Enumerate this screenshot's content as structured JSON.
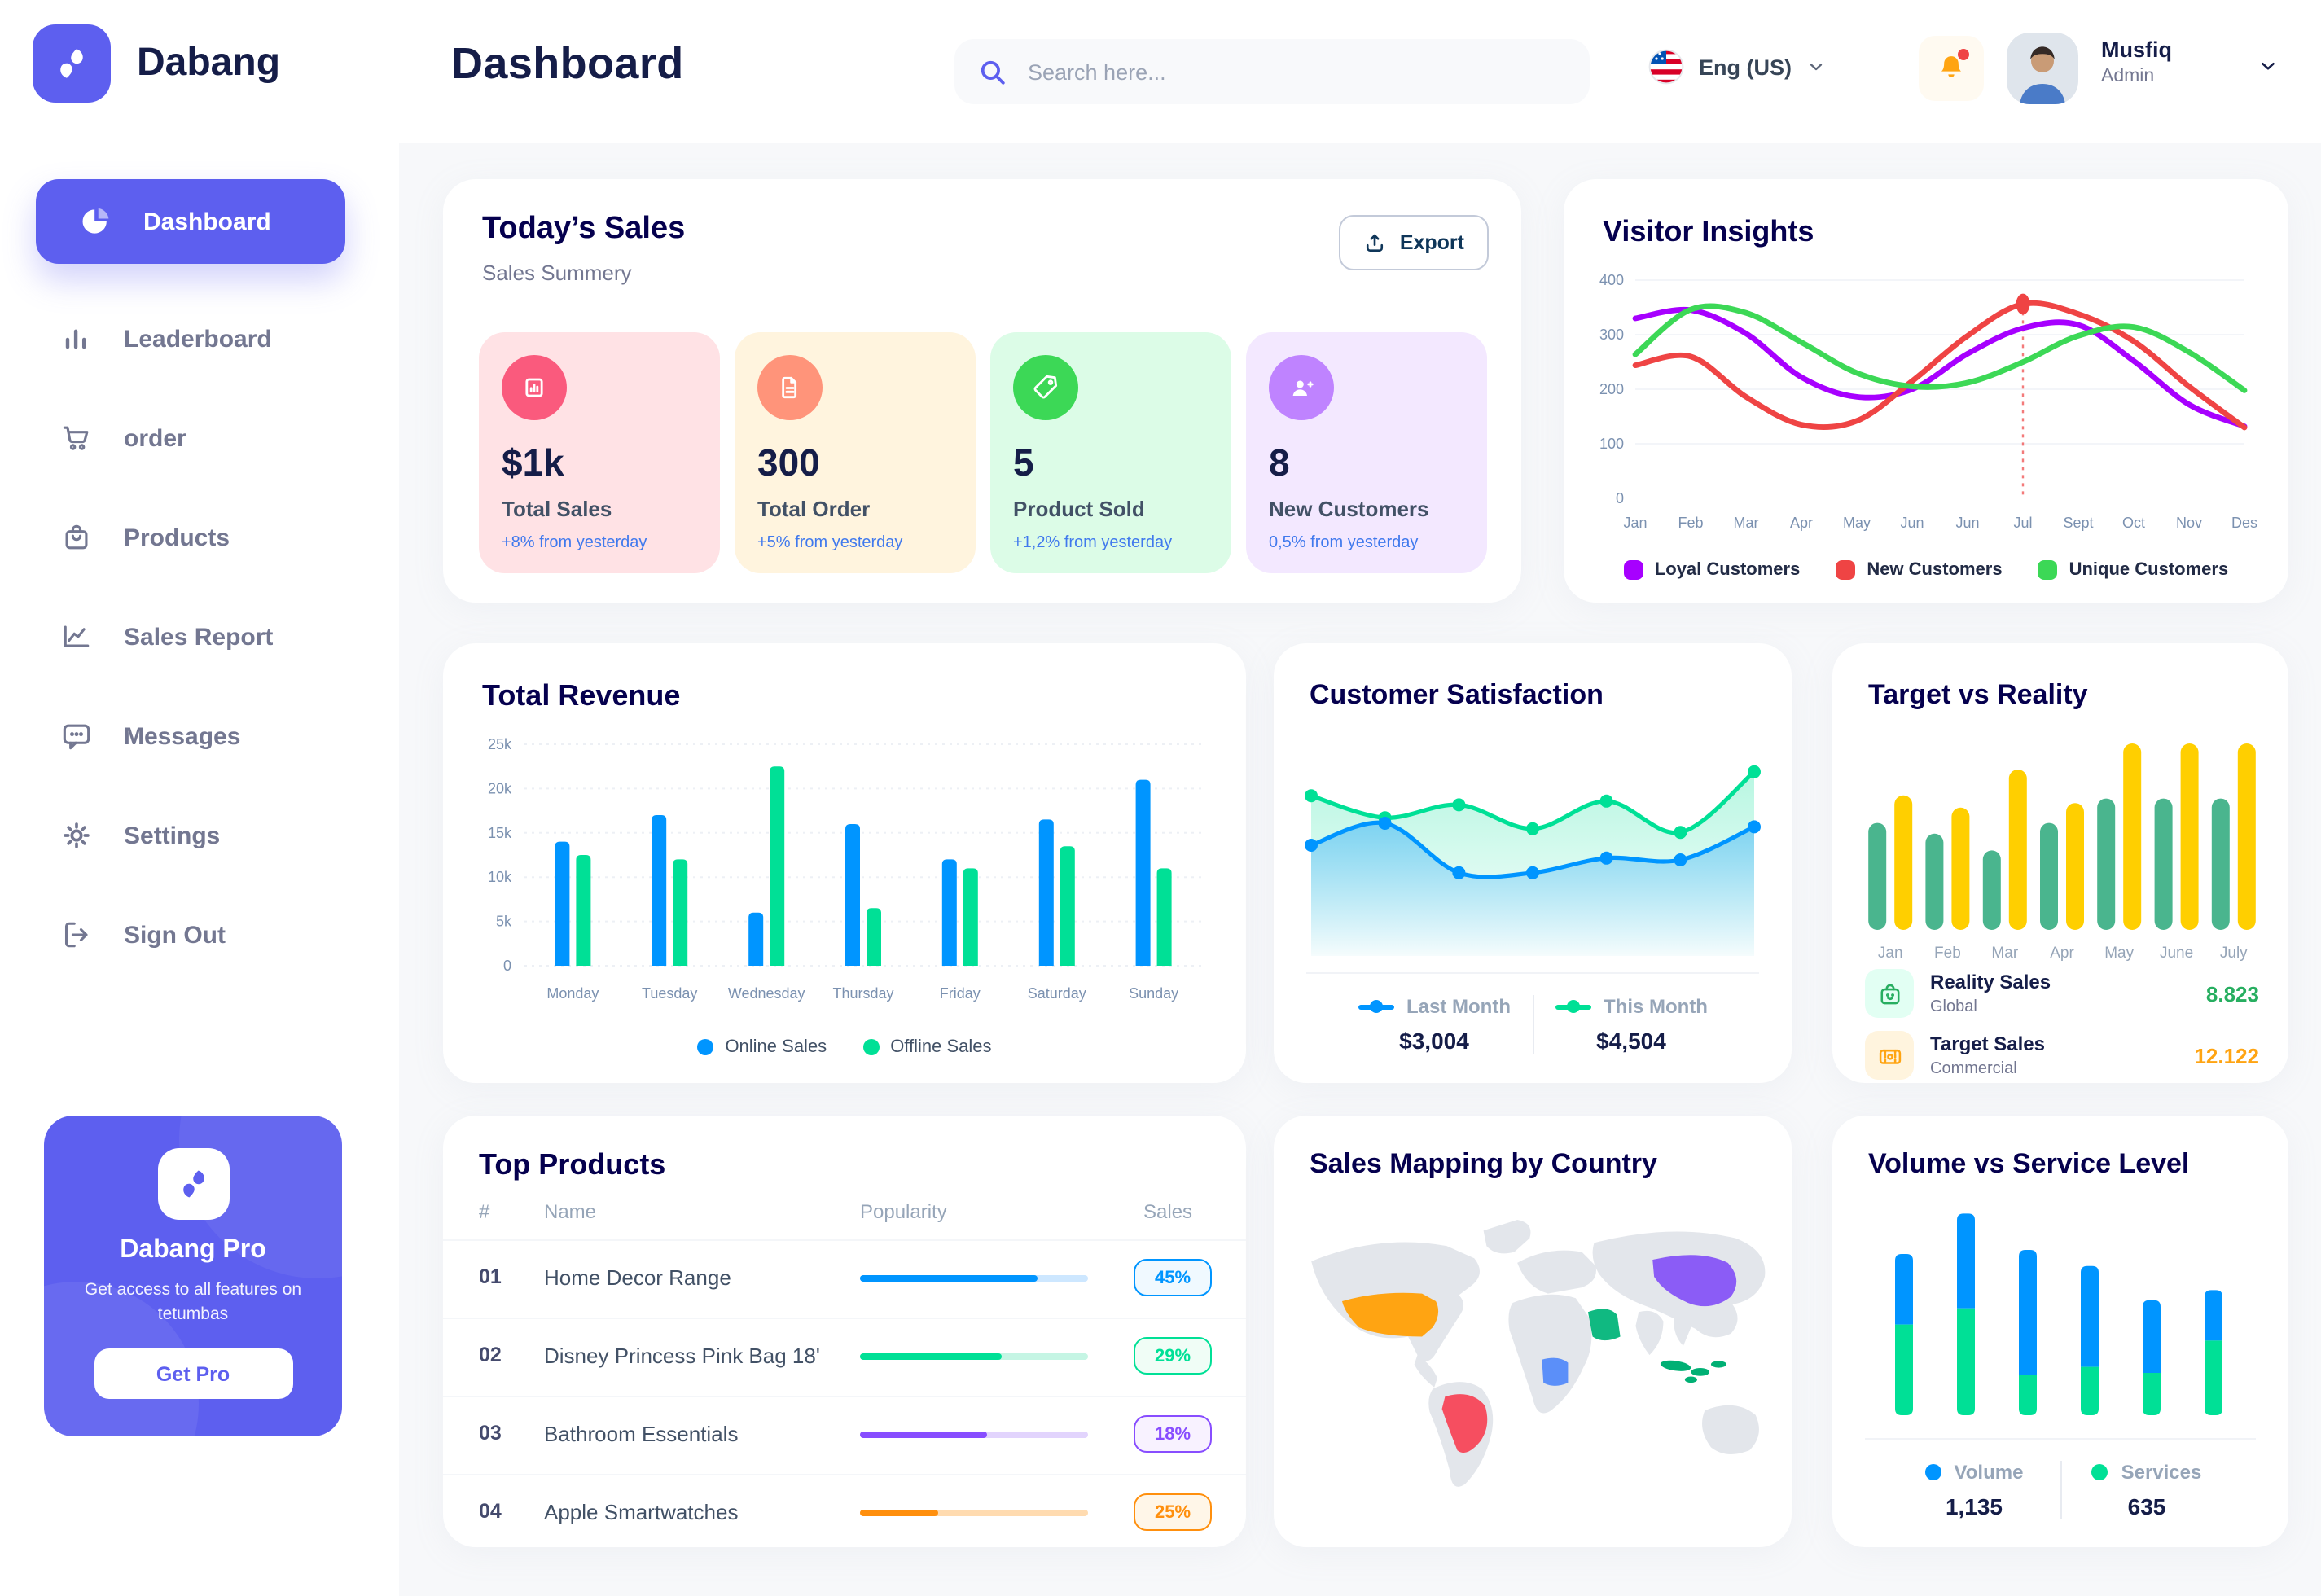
{
  "header": {
    "page_title": "Dashboard",
    "search_placeholder": "Search here...",
    "language": "Eng (US)",
    "user_name": "Musfiq",
    "user_role": "Admin"
  },
  "sidebar": {
    "brand": "Dabang",
    "items": [
      {
        "label": "Dashboard",
        "active": true
      },
      {
        "label": "Leaderboard"
      },
      {
        "label": "order"
      },
      {
        "label": "Products"
      },
      {
        "label": "Sales Report"
      },
      {
        "label": "Messages"
      },
      {
        "label": "Settings"
      },
      {
        "label": "Sign Out"
      }
    ],
    "pro_card": {
      "title": "Dabang Pro",
      "description": "Get access to all features on tetumbas",
      "button": "Get Pro"
    }
  },
  "colors": {
    "accent": "#5D5FEF",
    "title": "#05004E",
    "muted": "#737791"
  },
  "panels": {
    "today_sales": {
      "title": "Today’s Sales",
      "subtitle": "Sales Summery",
      "export_label": "Export",
      "cards": [
        {
          "value": "$1k",
          "label": "Total Sales",
          "delta": "+8% from yesterday",
          "bg": "#FFE2E5",
          "icon_bg": "#FA5A7D",
          "icon": "mini-bar-chart-icon"
        },
        {
          "value": "300",
          "label": "Total Order",
          "delta": "+5% from yesterday",
          "bg": "#FFF4DE",
          "icon_bg": "#FF947A",
          "icon": "order-document-icon"
        },
        {
          "value": "5",
          "label": "Product Sold",
          "delta": "+1,2% from yesterday",
          "bg": "#DCFCE7",
          "icon_bg": "#3CD856",
          "icon": "tag-icon"
        },
        {
          "value": "8",
          "label": "New Customers",
          "delta": "0,5% from yesterday",
          "bg": "#F3E8FF",
          "icon_bg": "#BF83FF",
          "icon": "user-plus-icon"
        }
      ]
    },
    "visitor_insights": {
      "title": "Visitor Insights"
    },
    "total_revenue": {
      "title": "Total Revenue"
    },
    "customer_satisfaction": {
      "title": "Customer Satisfaction"
    },
    "target_vs_reality": {
      "title": "Target vs Reality"
    },
    "top_products": {
      "title": "Top Products"
    },
    "sales_mapping": {
      "title": "Sales Mapping by Country"
    },
    "volume_service": {
      "title": "Volume vs Service Level"
    }
  },
  "chart_data": [
    {
      "id": "visitor-insights",
      "type": "line",
      "title": "Visitor Insights",
      "x": [
        "Jan",
        "Feb",
        "Mar",
        "Apr",
        "May",
        "Jun",
        "Jun",
        "Jul",
        "Sept",
        "Oct",
        "Nov",
        "Des"
      ],
      "ylim": [
        0,
        400
      ],
      "yticks": [
        0,
        100,
        200,
        300,
        400
      ],
      "grid": true,
      "legend_position": "bottom",
      "series": [
        {
          "name": "Loyal Customers",
          "color": "#A700FF",
          "values": [
            330,
            345,
            302,
            222,
            186,
            200,
            265,
            312,
            318,
            252,
            172,
            132
          ]
        },
        {
          "name": "New Customers",
          "color": "#EF4444",
          "values": [
            244,
            260,
            186,
            135,
            142,
            215,
            298,
            356,
            338,
            288,
            205,
            130
          ]
        },
        {
          "name": "Unique Customers",
          "color": "#3CD856",
          "values": [
            264,
            346,
            340,
            286,
            230,
            205,
            212,
            250,
            298,
            314,
            268,
            198
          ]
        }
      ],
      "highlight": {
        "series": 1,
        "index": 7
      }
    },
    {
      "id": "total-revenue",
      "type": "grouped-bar",
      "title": "Total Revenue",
      "categories": [
        "Monday",
        "Tuesday",
        "Wednesday",
        "Thursday",
        "Friday",
        "Saturday",
        "Sunday"
      ],
      "ylim": [
        0,
        25
      ],
      "yticks": [
        0,
        5,
        10,
        15,
        20,
        25
      ],
      "ytick_labels": [
        "0",
        "5k",
        "10k",
        "15k",
        "20k",
        "25k"
      ],
      "grid": true,
      "legend_position": "bottom",
      "series": [
        {
          "name": "Online Sales",
          "color": "#0095FF",
          "values": [
            14,
            17,
            6,
            16,
            12,
            16.5,
            21
          ]
        },
        {
          "name": "Offline Sales",
          "color": "#00E096",
          "values": [
            12.5,
            12,
            22.5,
            6.5,
            11,
            13.5,
            11
          ]
        }
      ]
    },
    {
      "id": "customer-satisfaction",
      "type": "area",
      "title": "Customer Satisfaction",
      "ylim": [
        0,
        110
      ],
      "series": [
        {
          "name": "Last Month",
          "color": "#0095FF",
          "total": "$3,004",
          "values": [
            55,
            67,
            40,
            40,
            48,
            47,
            65
          ]
        },
        {
          "name": "This Month",
          "color": "#00E096",
          "total": "$4,504",
          "values": [
            82,
            70,
            77,
            64,
            79,
            62,
            95
          ]
        }
      ]
    },
    {
      "id": "target-vs-reality",
      "type": "grouped-bar-rounded",
      "title": "Target vs Reality",
      "categories": [
        "Jan",
        "Feb",
        "Mar",
        "Apr",
        "May",
        "June",
        "July"
      ],
      "ylim": [
        0,
        13
      ],
      "series": [
        {
          "name": "Reality Sales",
          "color": "#4AB58E",
          "values": [
            7,
            6.3,
            5.2,
            7,
            8.6,
            8.6,
            8.6
          ]
        },
        {
          "name": "Target Sales",
          "color": "#FFCF00",
          "values": [
            8.8,
            8,
            10.5,
            8.3,
            12.2,
            12.2,
            12.2
          ]
        }
      ],
      "legend": [
        {
          "label": "Reality Sales",
          "sublabel": "Global",
          "value": "8.823",
          "value_color": "#27AE60",
          "icon": "shopping-bag-icon",
          "icon_bg": "#E2FFF3"
        },
        {
          "label": "Target Sales",
          "sublabel": "Commercial",
          "value": "12.122",
          "value_color": "#FFA412",
          "icon": "ticket-icon",
          "icon_bg": "#FFF4DE"
        }
      ]
    },
    {
      "id": "top-products",
      "type": "table",
      "title": "Top Products",
      "headers": [
        "#",
        "Name",
        "Popularity",
        "Sales"
      ],
      "rows": [
        {
          "num": "01",
          "name": "Home Decor Range",
          "popularity": 78,
          "sales": "45%",
          "color": "#0095FF",
          "track": "#CDE7FF",
          "badge_bg": "#F0F9FF"
        },
        {
          "num": "02",
          "name": "Disney Princess Pink Bag 18'",
          "popularity": 62,
          "sales": "29%",
          "color": "#00E096",
          "track": "#C5F5E4",
          "badge_bg": "#F0FDF6"
        },
        {
          "num": "03",
          "name": "Bathroom Essentials",
          "popularity": 56,
          "sales": "18%",
          "color": "#884DFF",
          "track": "#E2D4FD",
          "badge_bg": "#F8F2FF"
        },
        {
          "num": "04",
          "name": "Apple Smartwatches",
          "popularity": 34,
          "sales": "25%",
          "color": "#FF8F0D",
          "track": "#FFDBB0",
          "badge_bg": "#FFF6E8"
        }
      ]
    },
    {
      "id": "sales-map",
      "type": "map",
      "title": "Sales Mapping by Country",
      "highlighted": [
        {
          "country": "usa",
          "label": "United States",
          "color": "#FFA412"
        },
        {
          "country": "brazil",
          "label": "Brazil",
          "color": "#F64E60"
        },
        {
          "country": "saudi-arabia",
          "label": "Saudi Arabia",
          "color": "#10B981"
        },
        {
          "country": "dr-congo",
          "label": "DR Congo",
          "color": "#5B8FF9"
        },
        {
          "country": "china",
          "label": "China",
          "color": "#8B5CF6"
        },
        {
          "country": "indonesia",
          "label": "Indonesia",
          "color": "#00B074"
        }
      ]
    },
    {
      "id": "volume-service",
      "type": "stacked-bar",
      "title": "Volume vs Service Level",
      "ylim": [
        0,
        105
      ],
      "series": [
        {
          "name": "Volume",
          "color": "#0095FF",
          "total": "1,135",
          "values": [
            35,
            47,
            62,
            50,
            36,
            25
          ]
        },
        {
          "name": "Services",
          "color": "#00E096",
          "total": "635",
          "values": [
            45,
            53,
            20,
            24,
            21,
            37
          ]
        }
      ]
    }
  ]
}
